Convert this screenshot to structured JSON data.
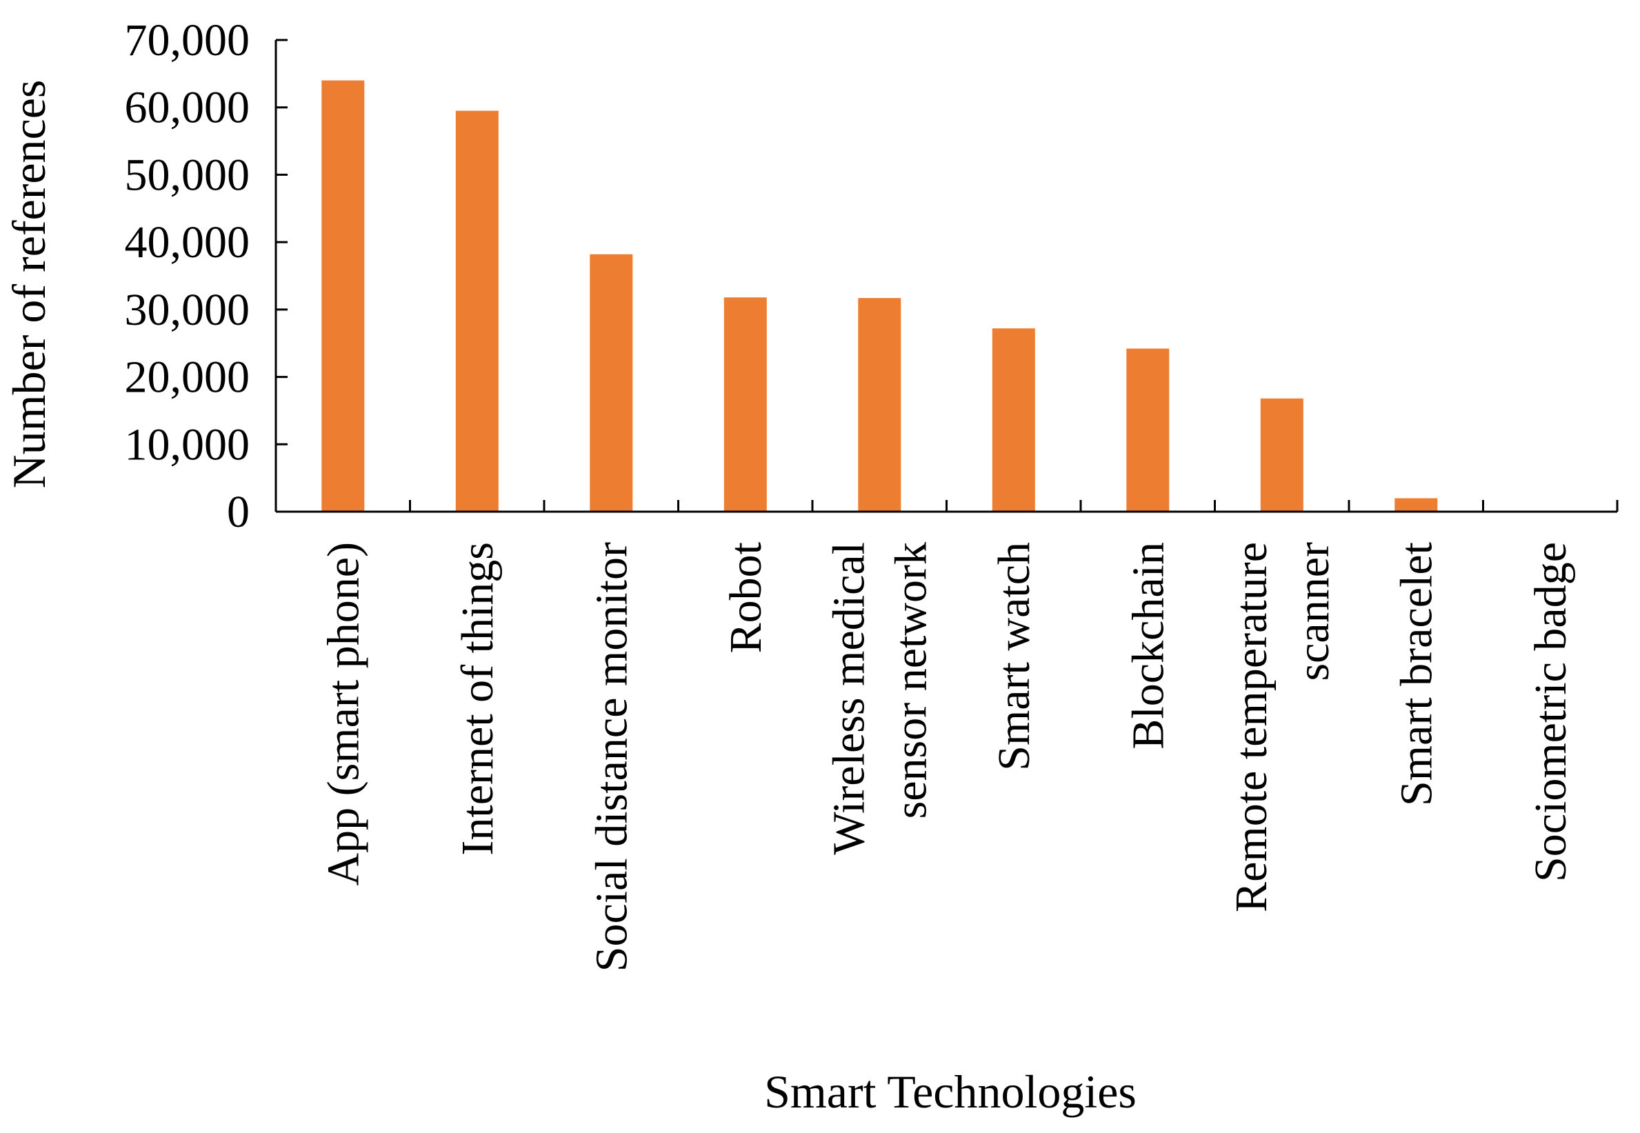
{
  "chart_data": {
    "type": "bar",
    "title": "",
    "xlabel": "Smart Technologies",
    "ylabel": "Number of references",
    "ylim": [
      0,
      70000
    ],
    "yticks": [
      0,
      10000,
      20000,
      30000,
      40000,
      50000,
      60000,
      70000
    ],
    "ytick_labels": [
      "0",
      "10,000",
      "20,000",
      "30,000",
      "40,000",
      "50,000",
      "60,000",
      "70,000"
    ],
    "categories": [
      [
        "App (smart phone)"
      ],
      [
        "Internet of things"
      ],
      [
        "Social distance monitor"
      ],
      [
        "Robot"
      ],
      [
        "Wireless medical",
        "sensor network"
      ],
      [
        "Smart watch"
      ],
      [
        "Blockchain"
      ],
      [
        "Remote temperature",
        "scanner"
      ],
      [
        "Smart bracelet"
      ],
      [
        "Sociometric badge"
      ]
    ],
    "values": [
      64000,
      59500,
      38200,
      31800,
      31700,
      27200,
      24200,
      16800,
      2000,
      0
    ],
    "bar_color": "#ed7d31",
    "grid": false,
    "legend": "none"
  }
}
